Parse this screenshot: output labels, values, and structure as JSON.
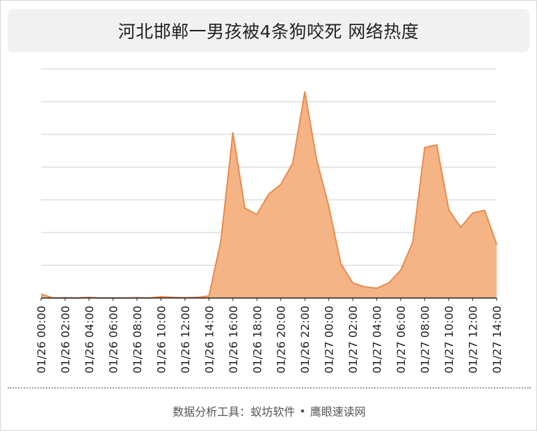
{
  "chart_data": {
    "type": "area",
    "title": "河北邯郸一男孩被4条狗咬死 网络热度",
    "xlabel": "",
    "ylabel": "",
    "x": [
      "01/26 00:00",
      "01/26 01:00",
      "01/26 02:00",
      "01/26 03:00",
      "01/26 04:00",
      "01/26 05:00",
      "01/26 06:00",
      "01/26 07:00",
      "01/26 08:00",
      "01/26 09:00",
      "01/26 10:00",
      "01/26 11:00",
      "01/26 12:00",
      "01/26 13:00",
      "01/26 14:00",
      "01/26 15:00",
      "01/26 16:00",
      "01/26 17:00",
      "01/26 18:00",
      "01/26 19:00",
      "01/26 20:00",
      "01/26 21:00",
      "01/26 22:00",
      "01/26 23:00",
      "01/27 00:00",
      "01/27 01:00",
      "01/27 02:00",
      "01/27 03:00",
      "01/27 04:00",
      "01/27 05:00",
      "01/27 06:00",
      "01/27 07:00",
      "01/27 08:00",
      "01/27 09:00",
      "01/27 10:00",
      "01/27 11:00",
      "01/27 12:00",
      "01/27 13:00",
      "01/27 14:00"
    ],
    "x_tick_labels": [
      "01/26 00:00",
      "01/26 02:00",
      "01/26 04:00",
      "01/26 06:00",
      "01/26 08:00",
      "01/26 10:00",
      "01/26 12:00",
      "01/26 14:00",
      "01/26 16:00",
      "01/26 18:00",
      "01/26 20:00",
      "01/26 22:00",
      "01/27 00:00",
      "01/27 02:00",
      "01/27 04:00",
      "01/27 06:00",
      "01/27 08:00",
      "01/27 10:00",
      "01/27 12:00",
      "01/27 14:00"
    ],
    "values": [
      1.2,
      0.0,
      0.1,
      0.0,
      0.2,
      0.0,
      0.0,
      0.0,
      0.1,
      0.0,
      0.4,
      0.2,
      0.1,
      0.2,
      0.6,
      17.5,
      50.5,
      27.5,
      25.5,
      31.8,
      34.7,
      41.3,
      63.0,
      42.0,
      28.0,
      10.5,
      4.6,
      3.4,
      3.0,
      4.6,
      8.5,
      17.0,
      46.0,
      46.8,
      27.0,
      21.6,
      26.0,
      26.8,
      16.3
    ],
    "ylim": [
      0,
      70
    ],
    "y_gridlines": [
      10,
      20,
      30,
      40,
      50,
      60,
      70
    ],
    "y_tick_labels_shown": false,
    "grid": true,
    "legend": "none",
    "colors": {
      "fill": "#f4b486",
      "stroke": "#ec8a4a",
      "grid": "#cccccc",
      "axis": "#222222"
    }
  },
  "footer": {
    "text_left": "数据分析工具：蚁坊软件",
    "separator": "•",
    "text_right": "鹰眼速读网"
  }
}
